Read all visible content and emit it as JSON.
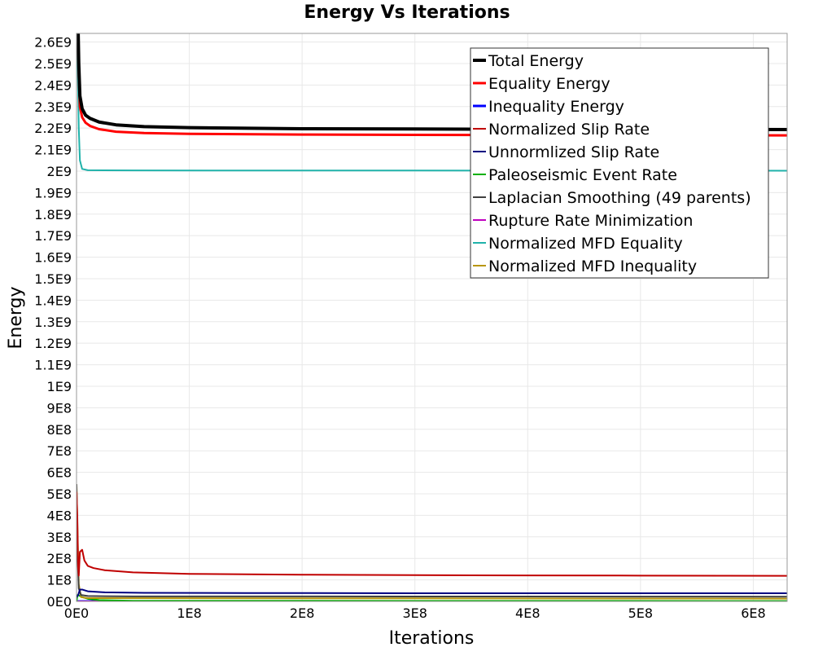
{
  "chart_data": {
    "type": "line",
    "title": "Energy Vs Iterations",
    "xlabel": "Iterations",
    "ylabel": "Energy",
    "xlim": [
      0,
      630000000
    ],
    "ylim": [
      0,
      2640000000
    ],
    "grid": true,
    "legend_position": "top-right",
    "x_ticks": [
      {
        "value": 0,
        "label": "0E0"
      },
      {
        "value": 100000000,
        "label": "1E8"
      },
      {
        "value": 200000000,
        "label": "2E8"
      },
      {
        "value": 300000000,
        "label": "3E8"
      },
      {
        "value": 400000000,
        "label": "4E8"
      },
      {
        "value": 500000000,
        "label": "5E8"
      },
      {
        "value": 600000000,
        "label": "6E8"
      }
    ],
    "y_ticks": [
      {
        "value": 0,
        "label": "0E0"
      },
      {
        "value": 100000000,
        "label": "1E8"
      },
      {
        "value": 200000000,
        "label": "2E8"
      },
      {
        "value": 300000000,
        "label": "3E8"
      },
      {
        "value": 400000000,
        "label": "4E8"
      },
      {
        "value": 500000000,
        "label": "5E8"
      },
      {
        "value": 600000000,
        "label": "6E8"
      },
      {
        "value": 700000000,
        "label": "7E8"
      },
      {
        "value": 800000000,
        "label": "8E8"
      },
      {
        "value": 900000000,
        "label": "9E8"
      },
      {
        "value": 1000000000,
        "label": "1E9"
      },
      {
        "value": 1100000000,
        "label": "1.1E9"
      },
      {
        "value": 1200000000,
        "label": "1.2E9"
      },
      {
        "value": 1300000000,
        "label": "1.3E9"
      },
      {
        "value": 1400000000,
        "label": "1.4E9"
      },
      {
        "value": 1500000000,
        "label": "1.5E9"
      },
      {
        "value": 1600000000,
        "label": "1.6E9"
      },
      {
        "value": 1700000000,
        "label": "1.7E9"
      },
      {
        "value": 1800000000,
        "label": "1.8E9"
      },
      {
        "value": 1900000000,
        "label": "1.9E9"
      },
      {
        "value": 2000000000,
        "label": "2E9"
      },
      {
        "value": 2100000000,
        "label": "2.1E9"
      },
      {
        "value": 2200000000,
        "label": "2.2E9"
      },
      {
        "value": 2300000000,
        "label": "2.3E9"
      },
      {
        "value": 2400000000,
        "label": "2.4E9"
      },
      {
        "value": 2500000000,
        "label": "2.5E9"
      },
      {
        "value": 2600000000,
        "label": "2.6E9"
      }
    ],
    "series": [
      {
        "name": "Total Energy",
        "color": "#000000",
        "width": 4,
        "points": [
          [
            0,
            2640000000
          ],
          [
            1500000,
            2640000000
          ],
          [
            2000000,
            2500000000
          ],
          [
            3000000,
            2350000000
          ],
          [
            5000000,
            2290000000
          ],
          [
            8000000,
            2260000000
          ],
          [
            12000000,
            2245000000
          ],
          [
            20000000,
            2228000000
          ],
          [
            35000000,
            2215000000
          ],
          [
            60000000,
            2207000000
          ],
          [
            100000000,
            2202000000
          ],
          [
            200000000,
            2197000000
          ],
          [
            350000000,
            2195000000
          ],
          [
            500000000,
            2194000000
          ],
          [
            630000000,
            2193000000
          ]
        ]
      },
      {
        "name": "Equality Energy",
        "color": "#ff0000",
        "width": 3,
        "points": [
          [
            0,
            2640000000
          ],
          [
            1400000,
            2640000000
          ],
          [
            2000000,
            2450000000
          ],
          [
            3000000,
            2300000000
          ],
          [
            5000000,
            2250000000
          ],
          [
            8000000,
            2225000000
          ],
          [
            12000000,
            2210000000
          ],
          [
            20000000,
            2195000000
          ],
          [
            35000000,
            2183000000
          ],
          [
            60000000,
            2177000000
          ],
          [
            100000000,
            2173000000
          ],
          [
            200000000,
            2170000000
          ],
          [
            350000000,
            2168000000
          ],
          [
            500000000,
            2167000000
          ],
          [
            630000000,
            2166000000
          ]
        ]
      },
      {
        "name": "Inequality Energy",
        "color": "#0000ff",
        "width": 3,
        "points": [
          [
            0,
            0
          ],
          [
            630000000,
            0
          ]
        ]
      },
      {
        "name": "Normalized Slip Rate",
        "color": "#c00000",
        "width": 2,
        "points": [
          [
            0,
            510000000
          ],
          [
            700000,
            400000000
          ],
          [
            1400000,
            160000000
          ],
          [
            2000000,
            120000000
          ],
          [
            3000000,
            230000000
          ],
          [
            5000000,
            240000000
          ],
          [
            7000000,
            190000000
          ],
          [
            10000000,
            165000000
          ],
          [
            15000000,
            155000000
          ],
          [
            25000000,
            145000000
          ],
          [
            50000000,
            135000000
          ],
          [
            100000000,
            128000000
          ],
          [
            200000000,
            124000000
          ],
          [
            350000000,
            121000000
          ],
          [
            500000000,
            120000000
          ],
          [
            630000000,
            119000000
          ]
        ]
      },
      {
        "name": "Unnormlized Slip Rate",
        "color": "#000080",
        "width": 2,
        "points": [
          [
            0,
            20000000
          ],
          [
            1500000,
            30000000
          ],
          [
            3000000,
            55000000
          ],
          [
            5000000,
            55000000
          ],
          [
            10000000,
            47000000
          ],
          [
            25000000,
            42000000
          ],
          [
            60000000,
            40000000
          ],
          [
            150000000,
            39000000
          ],
          [
            300000000,
            38000000
          ],
          [
            630000000,
            38000000
          ]
        ]
      },
      {
        "name": "Paleoseismic Event Rate",
        "color": "#00b000",
        "width": 2,
        "points": [
          [
            0,
            0
          ],
          [
            1000000,
            30000000
          ],
          [
            2000000,
            28000000
          ],
          [
            5000000,
            20000000
          ],
          [
            10000000,
            12000000
          ],
          [
            20000000,
            6000000
          ],
          [
            50000000,
            3000000
          ],
          [
            630000000,
            2000000
          ]
        ]
      },
      {
        "name": "Laplacian Smoothing (49 parents)",
        "color": "#404040",
        "width": 2,
        "points": [
          [
            0,
            545000000
          ],
          [
            1000000,
            200000000
          ],
          [
            2000000,
            60000000
          ],
          [
            4000000,
            30000000
          ],
          [
            10000000,
            25000000
          ],
          [
            50000000,
            23000000
          ],
          [
            200000000,
            23000000
          ],
          [
            630000000,
            22000000
          ]
        ]
      },
      {
        "name": "Rupture Rate Minimization",
        "color": "#c000c0",
        "width": 2,
        "points": [
          [
            0,
            0
          ],
          [
            630000000,
            0
          ]
        ]
      },
      {
        "name": "Normalized MFD Equality",
        "color": "#20b2aa",
        "width": 2,
        "points": [
          [
            0,
            2640000000
          ],
          [
            600000,
            2640000000
          ],
          [
            1000000,
            2500000000
          ],
          [
            2000000,
            2200000000
          ],
          [
            3000000,
            2050000000
          ],
          [
            5000000,
            2010000000
          ],
          [
            10000000,
            2004000000
          ],
          [
            50000000,
            2003000000
          ],
          [
            630000000,
            2002000000
          ]
        ]
      },
      {
        "name": "Normalized MFD Inequality",
        "color": "#b8960c",
        "width": 2,
        "points": [
          [
            0,
            545000000
          ],
          [
            1000000,
            300000000
          ],
          [
            2000000,
            80000000
          ],
          [
            4000000,
            20000000
          ],
          [
            10000000,
            15000000
          ],
          [
            630000000,
            13000000
          ]
        ]
      }
    ]
  }
}
